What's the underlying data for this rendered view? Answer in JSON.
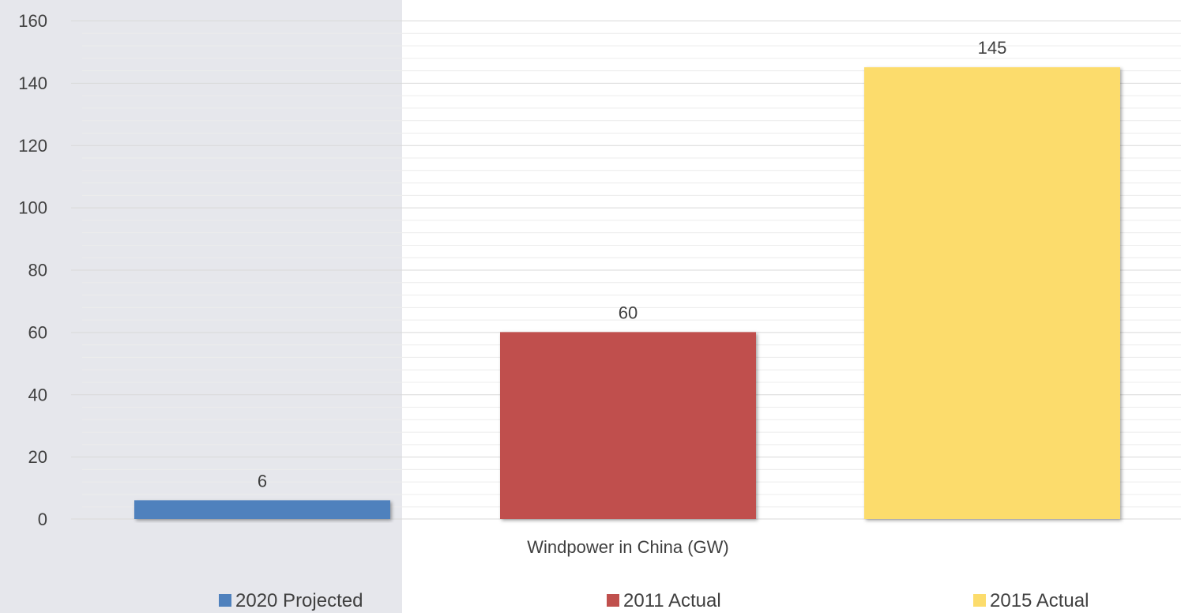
{
  "chart_data": {
    "type": "bar",
    "categories": [
      "Windpower in China (GW)"
    ],
    "series": [
      {
        "name": "2020 Projected",
        "values": [
          6
        ],
        "color": "#4f81bd"
      },
      {
        "name": "2011 Actual",
        "values": [
          60
        ],
        "color": "#c0504d"
      },
      {
        "name": "2015 Actual",
        "values": [
          145
        ],
        "color": "#fcdc6c"
      }
    ],
    "xlabel": "",
    "ylabel": "",
    "ylim": [
      0,
      160
    ],
    "yticks": [
      0,
      20,
      40,
      60,
      80,
      100,
      120,
      140,
      160
    ],
    "data_labels": [
      "6",
      "60",
      "145"
    ],
    "grid": true,
    "legend_position": "bottom",
    "colors": {
      "left_panel_background": "#e6e7ec",
      "major_gridline": "#d9d9d9",
      "minor_gridline": "#ececec",
      "text": "#404040"
    }
  }
}
